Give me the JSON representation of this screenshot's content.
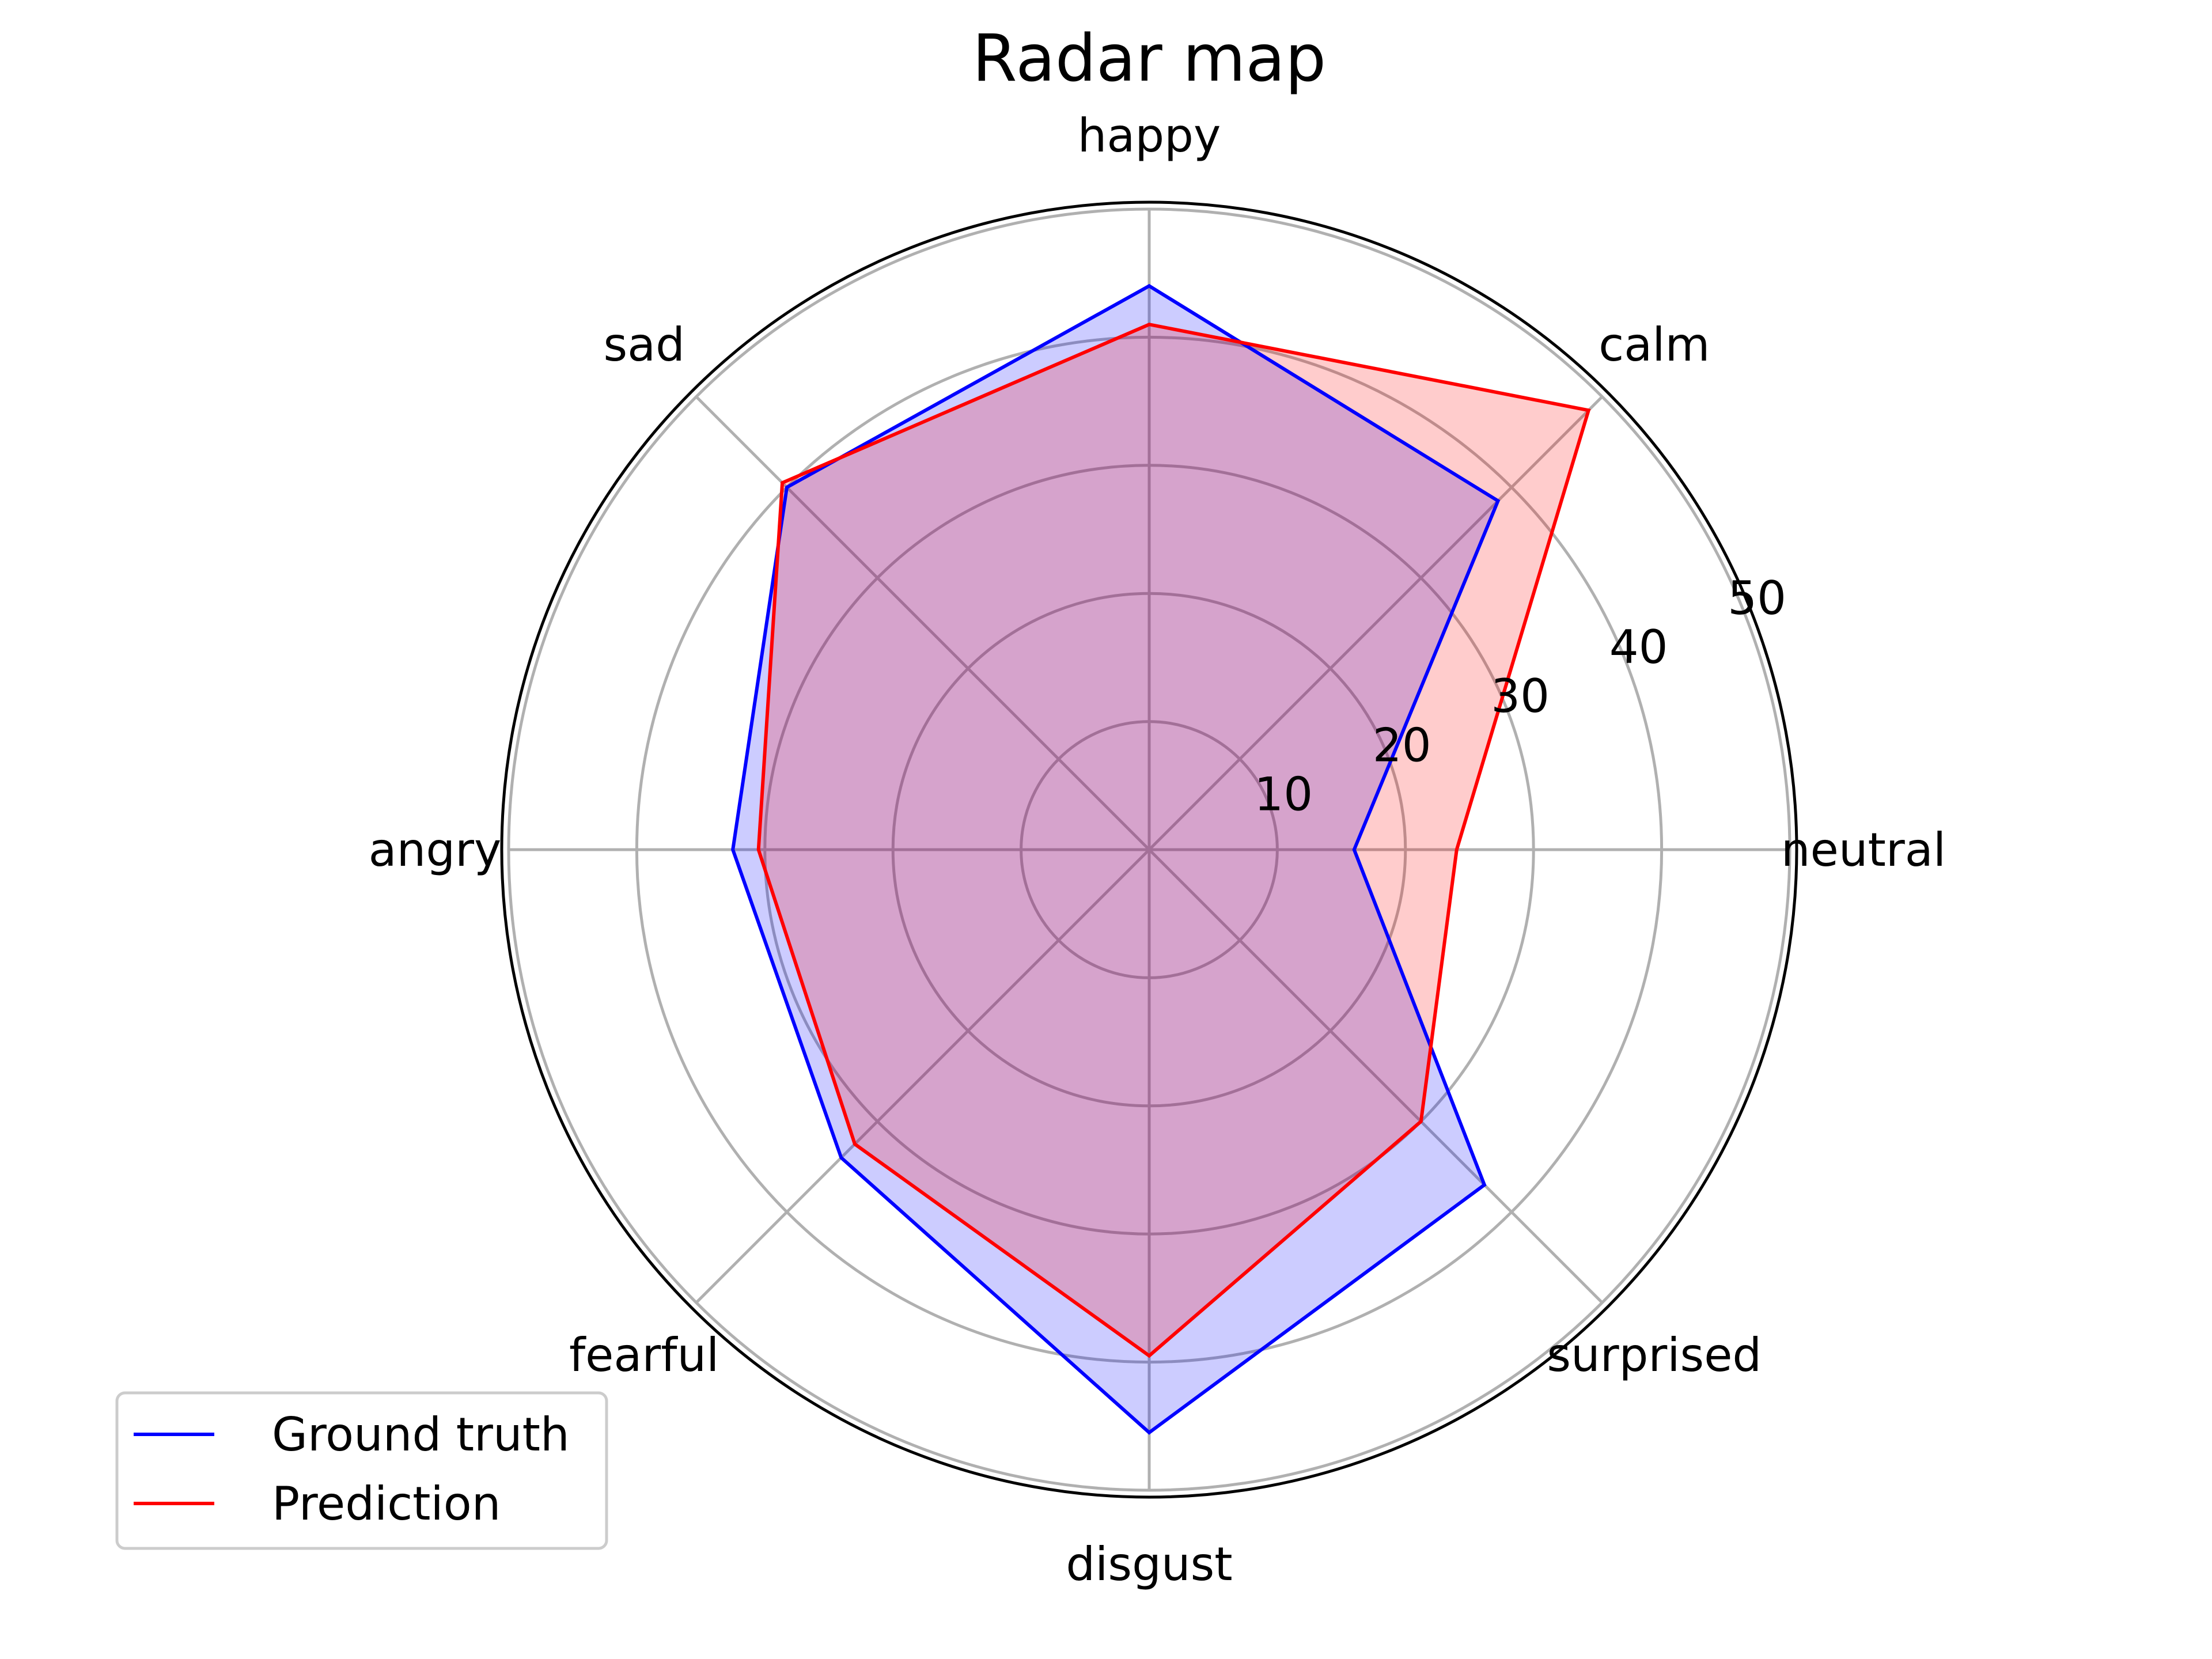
{
  "chart_data": {
    "type": "radar",
    "title": "Radar map",
    "categories": [
      "neutral",
      "calm",
      "happy",
      "sad",
      "angry",
      "fearful",
      "disgust",
      "surprised"
    ],
    "rlim": [
      0,
      50
    ],
    "rticks": [
      10,
      20,
      30,
      40,
      50
    ],
    "rtick_labels": [
      "10",
      "20",
      "30",
      "40",
      "50"
    ],
    "grid": true,
    "legend_position": "lower-left",
    "series": [
      {
        "name": "Ground truth",
        "color": "#0000ff",
        "fill": "#0000ff",
        "values": [
          16,
          38.5,
          44,
          40,
          32.5,
          34,
          45.5,
          37
        ]
      },
      {
        "name": "Prediction",
        "color": "#ff0000",
        "fill": "#ff0000",
        "values": [
          24,
          48.5,
          41,
          40.5,
          30.5,
          32.5,
          39.5,
          30
        ]
      }
    ]
  }
}
